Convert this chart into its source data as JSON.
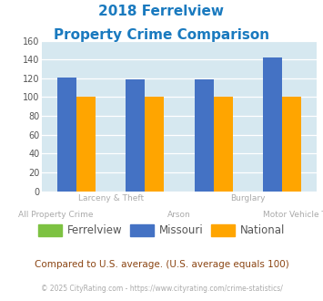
{
  "title_line1": "2018 Ferrelview",
  "title_line2": "Property Crime Comparison",
  "title_color": "#1a7abf",
  "n_groups": 4,
  "ferrelview": [
    0,
    0,
    0,
    0
  ],
  "missouri": [
    121,
    119,
    119,
    142
  ],
  "national": [
    100,
    100,
    100,
    100
  ],
  "ferrelview_color": "#7dc242",
  "missouri_color": "#4472c4",
  "national_color": "#ffa500",
  "bg_color": "#d6e8f0",
  "ylim": [
    0,
    160
  ],
  "yticks": [
    0,
    20,
    40,
    60,
    80,
    100,
    120,
    140,
    160
  ],
  "ylabel_color": "#555555",
  "bar_width": 0.28,
  "footer_text": "Compared to U.S. average. (U.S. average equals 100)",
  "footer_color": "#8b4513",
  "copyright_text": "© 2025 CityRating.com - https://www.cityrating.com/crime-statistics/",
  "copyright_color": "#aaaaaa",
  "legend_labels": [
    "Ferrelview",
    "Missouri",
    "National"
  ],
  "xlabel_color": "#aaaaaa",
  "xlabels_row1": [
    "",
    "Larceny & Theft",
    "",
    "Burglary"
  ],
  "xlabels_row2": [
    "All Property Crime",
    "Arson",
    "",
    "Motor Vehicle Theft"
  ],
  "xlabel_offset_row1": -0.5,
  "xlabel_offset_row2": -0.5
}
